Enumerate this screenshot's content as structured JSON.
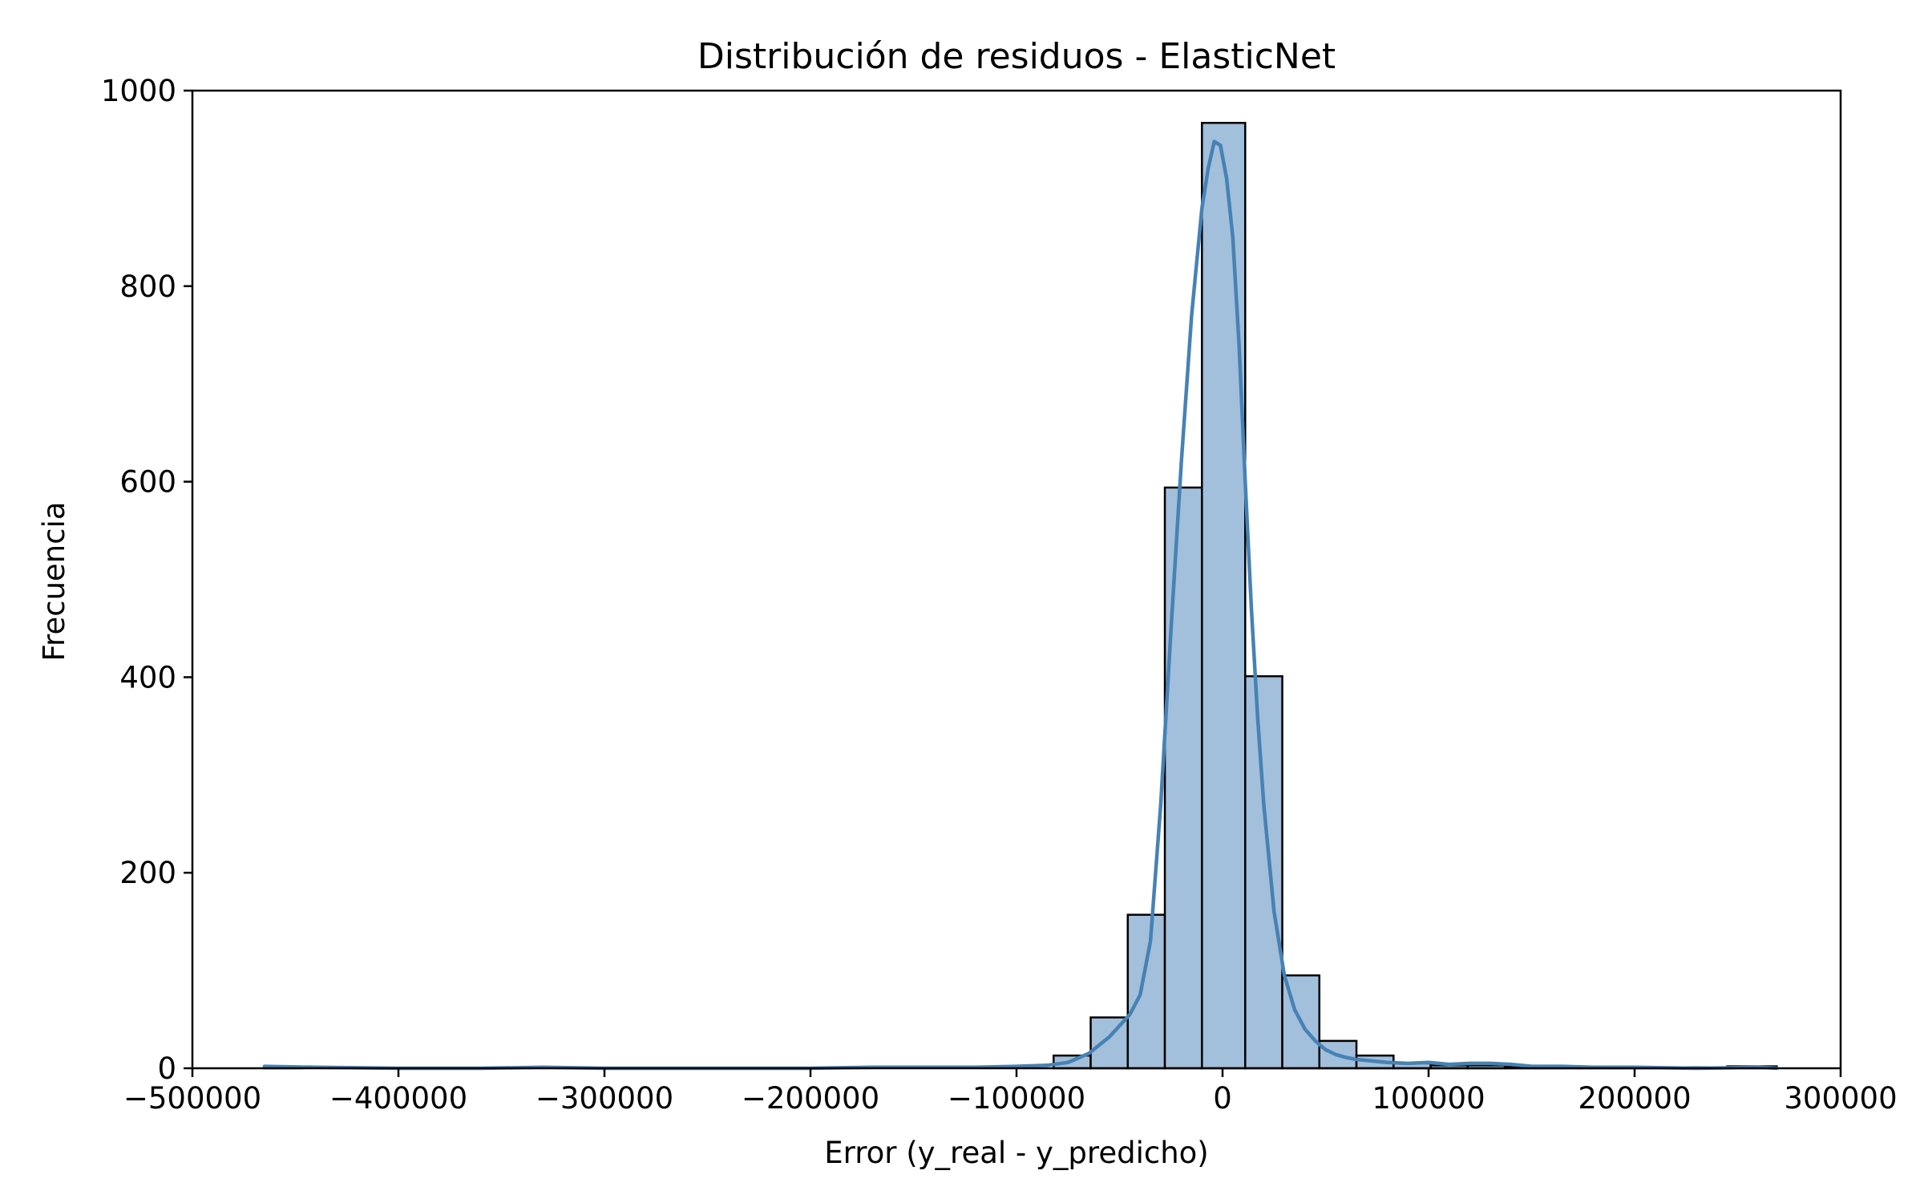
{
  "chart_data": {
    "type": "bar",
    "subtype": "histogram-with-kde",
    "title": "Distribución de residuos - ElasticNet",
    "xlabel": "Error (y_real - y_predicho)",
    "ylabel": "Frecuencia",
    "xlim": [
      -500000,
      300000
    ],
    "ylim": [
      0,
      1000
    ],
    "x_ticks": [
      -500000,
      -400000,
      -300000,
      -200000,
      -100000,
      0,
      100000,
      200000,
      300000
    ],
    "x_tick_labels": [
      "−500000",
      "−400000",
      "−300000",
      "−200000",
      "−100000",
      "0",
      "100000",
      "200000",
      "300000"
    ],
    "y_ticks": [
      0,
      200,
      400,
      600,
      800,
      1000
    ],
    "y_tick_labels": [
      "0",
      "200",
      "400",
      "600",
      "800",
      "1000"
    ],
    "grid": false,
    "bar_fill": "#a2bfdb",
    "bar_edge": "#000000",
    "kde_color": "#4682b4",
    "bins": [
      {
        "start": -465000,
        "end": -447000,
        "count": 1
      },
      {
        "start": -82000,
        "end": -64000,
        "count": 13
      },
      {
        "start": -64000,
        "end": -46000,
        "count": 52
      },
      {
        "start": -46000,
        "end": -28000,
        "count": 157
      },
      {
        "start": -28000,
        "end": -10000,
        "count": 594
      },
      {
        "start": -10000,
        "end": 11000,
        "count": 967
      },
      {
        "start": 11000,
        "end": 29000,
        "count": 401
      },
      {
        "start": 29000,
        "end": 47000,
        "count": 95
      },
      {
        "start": 47000,
        "end": 65000,
        "count": 28
      },
      {
        "start": 65000,
        "end": 83000,
        "count": 13
      },
      {
        "start": 83000,
        "end": 101000,
        "count": 5
      },
      {
        "start": 101000,
        "end": 119000,
        "count": 3
      },
      {
        "start": 119000,
        "end": 137000,
        "count": 3
      },
      {
        "start": 137000,
        "end": 155000,
        "count": 2
      },
      {
        "start": 155000,
        "end": 173000,
        "count": 1
      },
      {
        "start": 173000,
        "end": 191000,
        "count": 1
      },
      {
        "start": 191000,
        "end": 209000,
        "count": 1
      },
      {
        "start": 209000,
        "end": 227000,
        "count": 1
      },
      {
        "start": 227000,
        "end": 245000,
        "count": 1
      },
      {
        "start": 245000,
        "end": 269000,
        "count": 2
      }
    ],
    "kde": {
      "x": [
        -465000,
        -440000,
        -400000,
        -360000,
        -330000,
        -300000,
        -250000,
        -200000,
        -170000,
        -140000,
        -120000,
        -100000,
        -85000,
        -75000,
        -65000,
        -55000,
        -45000,
        -40000,
        -35000,
        -30000,
        -25000,
        -20000,
        -15000,
        -10000,
        -7000,
        -4000,
        -1000,
        2000,
        5000,
        8000,
        11000,
        14000,
        17000,
        20000,
        25000,
        30000,
        35000,
        40000,
        45000,
        50000,
        55000,
        60000,
        65000,
        70000,
        80000,
        90000,
        100000,
        110000,
        120000,
        130000,
        140000,
        150000,
        165000,
        180000,
        200000,
        230000,
        260000,
        269000
      ],
      "y": [
        2,
        1,
        0,
        0,
        1,
        0,
        0,
        0,
        1,
        1,
        1,
        2,
        3,
        6,
        15,
        32,
        55,
        75,
        130,
        270,
        450,
        620,
        770,
        880,
        920,
        948,
        944,
        910,
        850,
        740,
        600,
        470,
        360,
        270,
        160,
        95,
        60,
        40,
        28,
        19,
        14,
        11,
        9,
        8,
        6,
        5,
        6,
        4,
        5,
        5,
        4,
        2,
        2,
        1,
        1,
        0,
        1,
        0
      ]
    }
  }
}
